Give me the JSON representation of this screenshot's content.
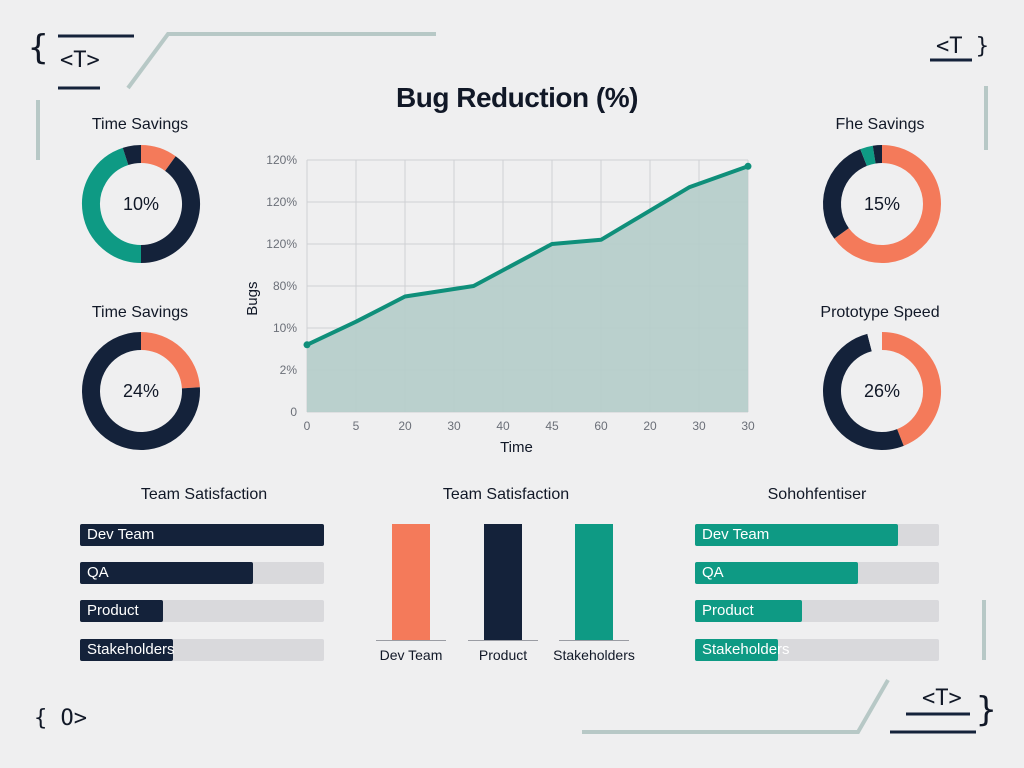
{
  "decor": {
    "top_left_tag": "<T>",
    "top_right_tag": "<T }",
    "bottom_left_tag": "{ O>",
    "bottom_right_tag": "<T>",
    "brace_open": "{",
    "brace_close": "}"
  },
  "colors": {
    "navy": "#14223a",
    "teal": "#0e9a84",
    "orange": "#f47a5a",
    "track": "#d9d9dc",
    "area": "#b6cdca",
    "line": "#0f8f7a"
  },
  "chart_data": [
    {
      "type": "area",
      "title": "Bug Reduction (%)",
      "xlabel": "Time",
      "ylabel": "Bugs",
      "x_ticks": [
        "0",
        "5",
        "20",
        "30",
        "40",
        "45",
        "60",
        "20",
        "30",
        "30"
      ],
      "y_ticks": [
        "0",
        "2%",
        "10%",
        "80%",
        "120%",
        "120%",
        "120%"
      ],
      "grid": true,
      "series": [
        {
          "values": [
            1.6,
            2.15,
            2.75,
            3.0,
            4.0,
            4.1,
            5.35,
            5.85
          ]
        }
      ],
      "x_positions": [
        0,
        1.0,
        2.0,
        3.4,
        5.0,
        6.0,
        7.8,
        9.0
      ],
      "xlim": [
        0,
        9
      ],
      "ylim": [
        0,
        6
      ]
    },
    {
      "type": "pie",
      "title": "Time Savings",
      "center_label": "10%",
      "slices": [
        {
          "value": 10,
          "color": "#f47a5a"
        },
        {
          "value": 40,
          "color": "#14223a"
        },
        {
          "value": 45,
          "color": "#0e9a84"
        },
        {
          "value": 5,
          "color": "#14223a"
        }
      ]
    },
    {
      "type": "pie",
      "title": "Time Savings",
      "center_label": "24%",
      "slices": [
        {
          "value": 24,
          "color": "#f47a5a"
        },
        {
          "value": 76,
          "color": "#14223a"
        }
      ]
    },
    {
      "type": "pie",
      "title": "Fhe Savings",
      "center_label": "15%",
      "slices": [
        {
          "value": 65,
          "color": "#f47a5a"
        },
        {
          "value": 29,
          "color": "#14223a"
        },
        {
          "value": 3.5,
          "color": "#0e9a84"
        },
        {
          "value": 2.5,
          "color": "#14223a"
        }
      ]
    },
    {
      "type": "pie",
      "title": "Prototype Speed",
      "center_label": "26%",
      "slices": [
        {
          "value": 44,
          "color": "#f47a5a"
        },
        {
          "value": 52,
          "color": "#14223a"
        },
        {
          "value": 4,
          "color": "#efeff0"
        }
      ]
    },
    {
      "type": "bar",
      "orientation": "horizontal",
      "title": "Team Satisfaction",
      "categories": [
        "Dev Team",
        "QA",
        "Product",
        "Stakeholders"
      ],
      "values": [
        100,
        71,
        34,
        38
      ],
      "color": "#14223a",
      "xlim": [
        0,
        100
      ]
    },
    {
      "type": "bar",
      "orientation": "vertical",
      "title": "Team Satisfaction",
      "categories": [
        "Dev Team",
        "Product",
        "Stakeholders"
      ],
      "values": [
        100,
        100,
        100
      ],
      "colors": [
        "#f47a5a",
        "#14223a",
        "#0e9a84"
      ],
      "ylim": [
        0,
        100
      ]
    },
    {
      "type": "bar",
      "orientation": "horizontal",
      "title": "Sohohfentiser",
      "categories": [
        "Dev Team",
        "QA",
        "Product",
        "Stakeholders"
      ],
      "values": [
        83,
        67,
        44,
        34
      ],
      "color": "#0e9a84",
      "xlim": [
        0,
        100
      ]
    }
  ]
}
